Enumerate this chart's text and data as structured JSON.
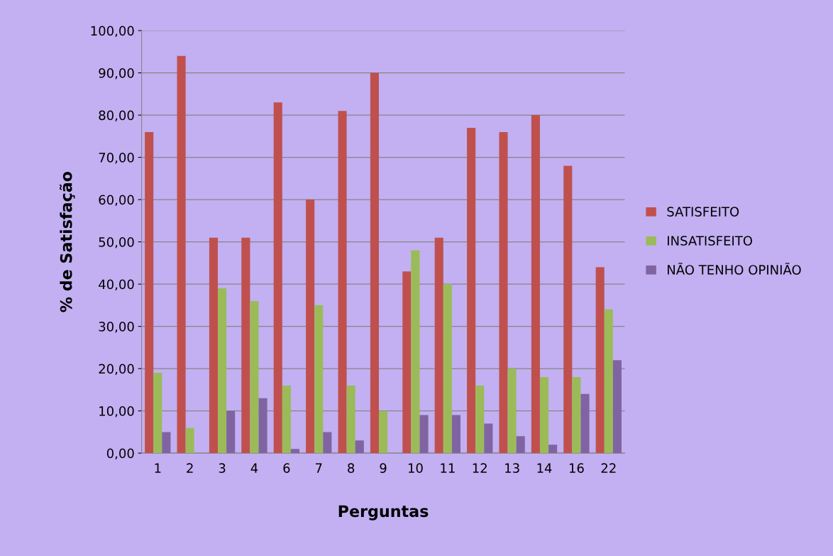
{
  "chart_data": {
    "type": "bar",
    "xlabel": "Perguntas",
    "ylabel": "% de Satisfação",
    "categories": [
      "1",
      "2",
      "3",
      "4",
      "6",
      "7",
      "8",
      "9",
      "10",
      "11",
      "12",
      "13",
      "14",
      "16",
      "22"
    ],
    "series": [
      {
        "name": "SATISFEITO",
        "color": "#c0504d",
        "values": [
          76,
          94,
          51,
          51,
          83,
          60,
          81,
          90,
          43,
          51,
          77,
          76,
          80,
          68,
          44
        ]
      },
      {
        "name": "INSATISFEITO",
        "color": "#9bbb59",
        "values": [
          19,
          6,
          39,
          36,
          16,
          35,
          16,
          10,
          48,
          40,
          16,
          20,
          18,
          18,
          34
        ]
      },
      {
        "name": "NÃO TENHO OPINIÃO",
        "color": "#8064a2",
        "values": [
          5,
          0,
          10,
          13,
          1,
          5,
          3,
          0,
          9,
          9,
          7,
          4,
          2,
          14,
          22
        ]
      }
    ],
    "ylim": [
      0,
      100
    ],
    "yticks": [
      {
        "value": 0,
        "label": "0,00"
      },
      {
        "value": 10,
        "label": "10,00"
      },
      {
        "value": 20,
        "label": "20,00"
      },
      {
        "value": 30,
        "label": "30,00"
      },
      {
        "value": 40,
        "label": "40,00"
      },
      {
        "value": 50,
        "label": "50,00"
      },
      {
        "value": 60,
        "label": "60,00"
      },
      {
        "value": 70,
        "label": "70,00"
      },
      {
        "value": 80,
        "label": "80,00"
      },
      {
        "value": 90,
        "label": "90,00"
      },
      {
        "value": 100,
        "label": "100,00"
      }
    ],
    "grid": "y",
    "legend": "right"
  }
}
